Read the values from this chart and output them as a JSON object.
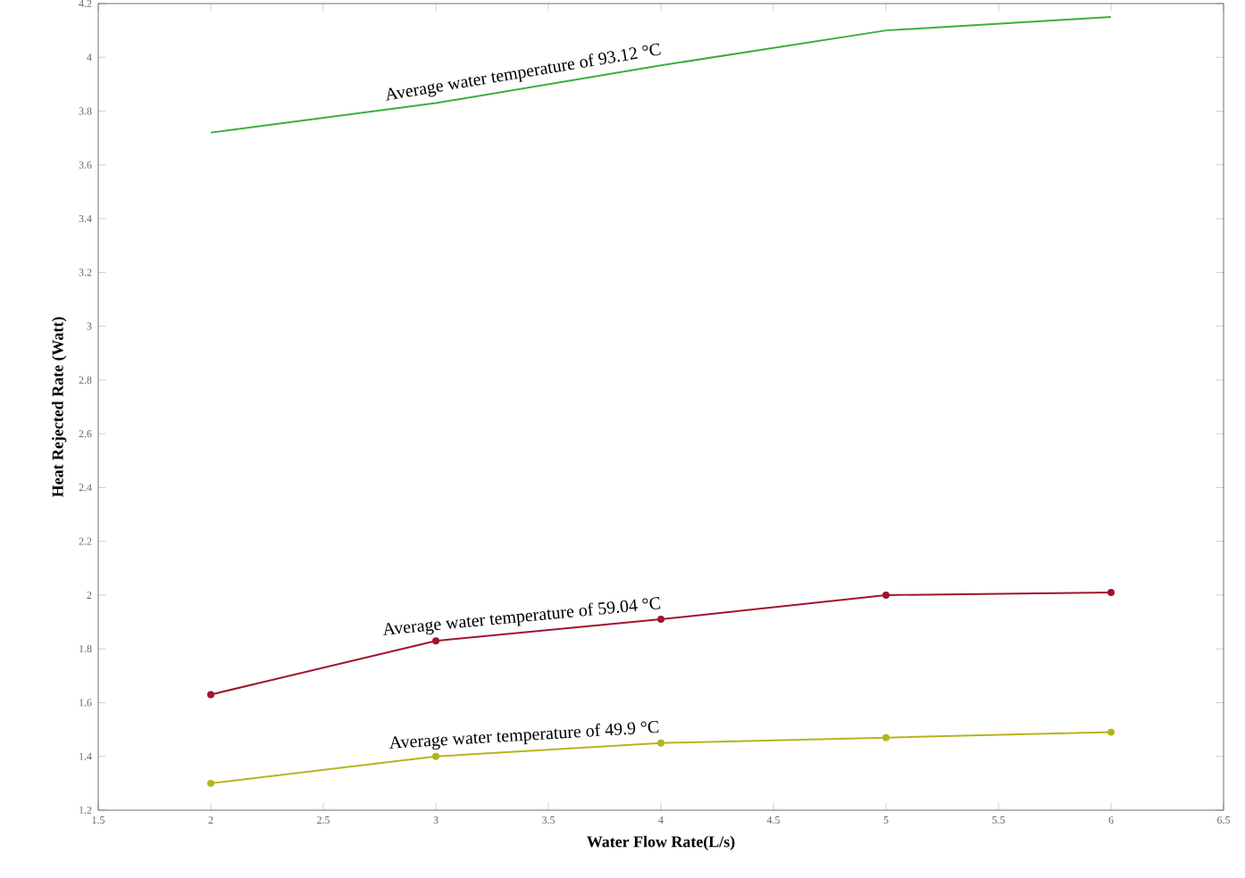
{
  "chart_data": {
    "type": "line",
    "xlabel": "Water Flow Rate(L/s)",
    "ylabel": "Heat Rejected Rate (Watt)",
    "x": [
      2,
      3,
      4,
      5,
      6
    ],
    "xlim": [
      1.5,
      6.5
    ],
    "xticks": [
      1.5,
      2,
      2.5,
      3,
      3.5,
      4,
      4.5,
      5,
      5.5,
      6,
      6.5
    ],
    "ylim": [
      1.2,
      4.2
    ],
    "yticks": [
      1.2,
      1.4,
      1.6,
      1.8,
      2,
      2.2,
      2.4,
      2.6,
      2.8,
      3,
      3.2,
      3.4,
      3.6,
      3.8,
      4,
      4.2
    ],
    "marker": "circle",
    "line_style": "solid",
    "series": [
      {
        "name": "Average water temperature of 93.12 °C",
        "color": "#3cae3c",
        "values": [
          3.72,
          3.83,
          3.97,
          4.1,
          4.15
        ],
        "marker": "none"
      },
      {
        "name": "Average water temperature of 59.04 °C",
        "color": "#a0142e",
        "values": [
          1.63,
          1.83,
          1.91,
          2.0,
          2.01
        ]
      },
      {
        "name": "Average water temperature of 49.9 °C",
        "color": "#b4b41e",
        "values": [
          1.3,
          1.4,
          1.45,
          1.47,
          1.49
        ]
      }
    ]
  }
}
